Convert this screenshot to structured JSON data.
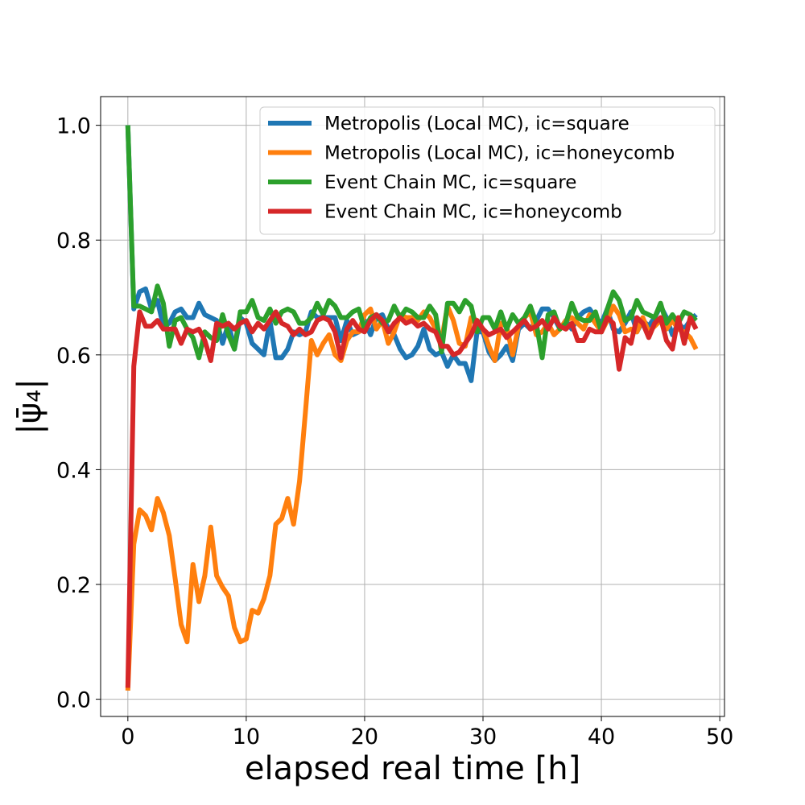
{
  "chart_data": {
    "type": "line",
    "title": "",
    "xlabel": "elapsed real time [h]",
    "ylabel": "|ψ̄₄|",
    "xlim": [
      -2.3,
      50.4
    ],
    "ylim": [
      -0.03,
      1.05
    ],
    "xticks": [
      0,
      10,
      20,
      30,
      40,
      50
    ],
    "yticks": [
      0.0,
      0.2,
      0.4,
      0.6,
      0.8,
      1.0
    ],
    "xtick_labels": [
      "0",
      "10",
      "20",
      "30",
      "40",
      "50"
    ],
    "ytick_labels": [
      "0.0",
      "0.2",
      "0.4",
      "0.6",
      "0.8",
      "1.0"
    ],
    "grid": true,
    "legend_position": "top-right",
    "series": [
      {
        "name": "Metropolis (Local MC), ic=square",
        "color": "#1f77b4",
        "x": [
          0,
          0.5,
          1,
          1.5,
          2,
          2.5,
          3,
          3.5,
          4,
          4.5,
          5,
          5.5,
          6,
          6.5,
          7,
          7.5,
          8,
          8.5,
          9,
          9.5,
          10,
          10.5,
          11,
          11.5,
          12,
          12.5,
          13,
          13.5,
          14,
          14.5,
          15,
          15.5,
          16,
          16.5,
          17,
          17.5,
          18,
          18.5,
          19,
          19.5,
          20,
          20.5,
          21,
          21.5,
          22,
          22.5,
          23,
          23.5,
          24,
          24.5,
          25,
          25.5,
          26,
          26.5,
          27,
          27.5,
          28,
          28.5,
          29,
          29.5,
          30,
          30.5,
          31,
          31.5,
          32,
          32.5,
          33,
          33.5,
          34,
          34.5,
          35,
          35.5,
          36,
          36.5,
          37,
          37.5,
          38,
          38.5,
          39,
          39.5,
          40,
          40.5,
          41,
          41.5,
          42,
          42.5,
          43,
          43.5,
          44,
          44.5,
          45,
          45.5,
          46,
          46.5,
          47,
          47.5,
          48
        ],
        "y": [
          1.0,
          0.68,
          0.71,
          0.715,
          0.68,
          0.695,
          0.65,
          0.655,
          0.675,
          0.68,
          0.665,
          0.665,
          0.69,
          0.67,
          0.665,
          0.66,
          0.62,
          0.655,
          0.61,
          0.665,
          0.655,
          0.62,
          0.61,
          0.6,
          0.66,
          0.595,
          0.595,
          0.61,
          0.64,
          0.635,
          0.64,
          0.675,
          0.665,
          0.665,
          0.665,
          0.665,
          0.625,
          0.66,
          0.635,
          0.64,
          0.66,
          0.635,
          0.665,
          0.67,
          0.645,
          0.635,
          0.61,
          0.595,
          0.6,
          0.615,
          0.645,
          0.61,
          0.6,
          0.605,
          0.58,
          0.6,
          0.585,
          0.585,
          0.555,
          0.64,
          0.64,
          0.605,
          0.59,
          0.6,
          0.615,
          0.59,
          0.645,
          0.655,
          0.645,
          0.66,
          0.68,
          0.68,
          0.665,
          0.645,
          0.66,
          0.645,
          0.665,
          0.675,
          0.68,
          0.665,
          0.655,
          0.68,
          0.645,
          0.64,
          0.655,
          0.675,
          0.64,
          0.66,
          0.65,
          0.665,
          0.685,
          0.665,
          0.635,
          0.655,
          0.645,
          0.66,
          0.67
        ]
      },
      {
        "name": "Metropolis (Local MC), ic=honeycomb",
        "color": "#ff7f0e",
        "x": [
          0,
          0.5,
          1,
          1.5,
          2,
          2.5,
          3,
          3.5,
          4,
          4.5,
          5,
          5.5,
          6,
          6.5,
          7,
          7.5,
          8,
          8.5,
          9,
          9.5,
          10,
          10.5,
          11,
          11.5,
          12,
          12.5,
          13,
          13.5,
          14,
          14.5,
          15,
          15.5,
          16,
          16.5,
          17,
          17.5,
          18,
          18.5,
          19,
          19.5,
          20,
          20.5,
          21,
          21.5,
          22,
          22.5,
          23,
          23.5,
          24,
          24.5,
          25,
          25.5,
          26,
          26.5,
          27,
          27.5,
          28,
          28.5,
          29,
          29.5,
          30,
          30.5,
          31,
          31.5,
          32,
          32.5,
          33,
          33.5,
          34,
          34.5,
          35,
          35.5,
          36,
          36.5,
          37,
          37.5,
          38,
          38.5,
          39,
          39.5,
          40,
          40.5,
          41,
          41.5,
          42,
          42.5,
          43,
          43.5,
          44,
          44.5,
          45,
          45.5,
          46,
          46.5,
          47,
          47.5,
          48
        ],
        "y": [
          0.015,
          0.27,
          0.33,
          0.32,
          0.295,
          0.35,
          0.325,
          0.285,
          0.21,
          0.13,
          0.1,
          0.235,
          0.17,
          0.215,
          0.3,
          0.215,
          0.195,
          0.18,
          0.125,
          0.1,
          0.105,
          0.155,
          0.15,
          0.175,
          0.215,
          0.305,
          0.315,
          0.35,
          0.305,
          0.38,
          0.5,
          0.625,
          0.6,
          0.62,
          0.635,
          0.6,
          0.59,
          0.625,
          0.64,
          0.64,
          0.67,
          0.68,
          0.645,
          0.66,
          0.62,
          0.64,
          0.67,
          0.665,
          0.665,
          0.66,
          0.675,
          0.665,
          0.645,
          0.625,
          0.685,
          0.66,
          0.62,
          0.615,
          0.665,
          0.66,
          0.645,
          0.615,
          0.59,
          0.655,
          0.65,
          0.6,
          0.65,
          0.665,
          0.675,
          0.635,
          0.64,
          0.655,
          0.635,
          0.645,
          0.66,
          0.665,
          0.655,
          0.645,
          0.67,
          0.655,
          0.64,
          0.66,
          0.685,
          0.67,
          0.64,
          0.645,
          0.64,
          0.665,
          0.64,
          0.65,
          0.66,
          0.645,
          0.66,
          0.645,
          0.64,
          0.63,
          0.61
        ]
      },
      {
        "name": "Event Chain MC, ic=square",
        "color": "#2ca02c",
        "x": [
          0,
          0.5,
          1,
          1.5,
          2,
          2.5,
          3,
          3.5,
          4,
          4.5,
          5,
          5.5,
          6,
          6.5,
          7,
          7.5,
          8,
          8.5,
          9,
          9.5,
          10,
          10.5,
          11,
          11.5,
          12,
          12.5,
          13,
          13.5,
          14,
          14.5,
          15,
          15.5,
          16,
          16.5,
          17,
          17.5,
          18,
          18.5,
          19,
          19.5,
          20,
          20.5,
          21,
          21.5,
          22,
          22.5,
          23,
          23.5,
          24,
          24.5,
          25,
          25.5,
          26,
          26.5,
          27,
          27.5,
          28,
          28.5,
          29,
          29.5,
          30,
          30.5,
          31,
          31.5,
          32,
          32.5,
          33,
          33.5,
          34,
          34.5,
          35,
          35.5,
          36,
          36.5,
          37,
          37.5,
          38,
          38.5,
          39,
          39.5,
          40,
          40.5,
          41,
          41.5,
          42,
          42.5,
          43,
          43.5,
          44,
          44.5,
          45,
          45.5,
          46,
          46.5,
          47,
          47.5,
          48
        ],
        "y": [
          1.0,
          0.685,
          0.685,
          0.68,
          0.675,
          0.72,
          0.69,
          0.615,
          0.66,
          0.665,
          0.645,
          0.63,
          0.595,
          0.64,
          0.63,
          0.625,
          0.67,
          0.635,
          0.61,
          0.675,
          0.675,
          0.695,
          0.665,
          0.66,
          0.68,
          0.655,
          0.675,
          0.68,
          0.675,
          0.655,
          0.655,
          0.665,
          0.69,
          0.67,
          0.695,
          0.685,
          0.665,
          0.665,
          0.675,
          0.68,
          0.645,
          0.665,
          0.67,
          0.655,
          0.66,
          0.685,
          0.665,
          0.68,
          0.675,
          0.665,
          0.665,
          0.685,
          0.67,
          0.605,
          0.69,
          0.69,
          0.675,
          0.695,
          0.685,
          0.64,
          0.665,
          0.665,
          0.645,
          0.675,
          0.645,
          0.67,
          0.655,
          0.665,
          0.685,
          0.655,
          0.595,
          0.67,
          0.675,
          0.645,
          0.655,
          0.69,
          0.665,
          0.66,
          0.66,
          0.675,
          0.64,
          0.68,
          0.71,
          0.695,
          0.66,
          0.665,
          0.695,
          0.675,
          0.67,
          0.665,
          0.69,
          0.655,
          0.67,
          0.655,
          0.675,
          0.67,
          0.66
        ]
      },
      {
        "name": "Event Chain MC, ic=honeycomb",
        "color": "#d62728",
        "x": [
          0,
          0.5,
          1,
          1.5,
          2,
          2.5,
          3,
          3.5,
          4,
          4.5,
          5,
          5.5,
          6,
          6.5,
          7,
          7.5,
          8,
          8.5,
          9,
          9.5,
          10,
          10.5,
          11,
          11.5,
          12,
          12.5,
          13,
          13.5,
          14,
          14.5,
          15,
          15.5,
          16,
          16.5,
          17,
          17.5,
          18,
          18.5,
          19,
          19.5,
          20,
          20.5,
          21,
          21.5,
          22,
          22.5,
          23,
          23.5,
          24,
          24.5,
          25,
          25.5,
          26,
          26.5,
          27,
          27.5,
          28,
          28.5,
          29,
          29.5,
          30,
          30.5,
          31,
          31.5,
          32,
          32.5,
          33,
          33.5,
          34,
          34.5,
          35,
          35.5,
          36,
          36.5,
          37,
          37.5,
          38,
          38.5,
          39,
          39.5,
          40,
          40.5,
          41,
          41.5,
          42,
          42.5,
          43,
          43.5,
          44,
          44.5,
          45,
          45.5,
          46,
          46.5,
          47,
          47.5,
          48
        ],
        "y": [
          0.02,
          0.58,
          0.675,
          0.65,
          0.65,
          0.66,
          0.645,
          0.645,
          0.645,
          0.62,
          0.645,
          0.64,
          0.645,
          0.625,
          0.59,
          0.655,
          0.65,
          0.655,
          0.645,
          0.655,
          0.66,
          0.64,
          0.655,
          0.645,
          0.66,
          0.675,
          0.655,
          0.65,
          0.635,
          0.645,
          0.635,
          0.64,
          0.66,
          0.665,
          0.66,
          0.64,
          0.595,
          0.645,
          0.66,
          0.645,
          0.64,
          0.66,
          0.67,
          0.66,
          0.64,
          0.655,
          0.665,
          0.655,
          0.66,
          0.65,
          0.655,
          0.645,
          0.64,
          0.615,
          0.615,
          0.6,
          0.605,
          0.62,
          0.635,
          0.66,
          0.645,
          0.635,
          0.64,
          0.645,
          0.63,
          0.64,
          0.65,
          0.66,
          0.645,
          0.65,
          0.66,
          0.645,
          0.665,
          0.65,
          0.645,
          0.655,
          0.625,
          0.625,
          0.645,
          0.64,
          0.64,
          0.665,
          0.655,
          0.575,
          0.63,
          0.62,
          0.665,
          0.655,
          0.63,
          0.655,
          0.665,
          0.625,
          0.61,
          0.665,
          0.62,
          0.665,
          0.645
        ]
      }
    ]
  }
}
